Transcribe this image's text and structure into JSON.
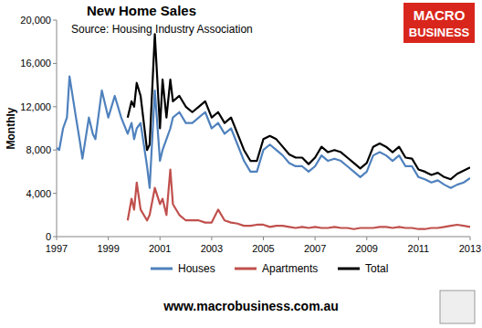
{
  "chart_data": {
    "type": "line",
    "title": "New Home Sales",
    "subtitle": "Source: Housing Industry Association",
    "y_label": "Monthly",
    "annotations": [
      "MACRO",
      "BUSINESS",
      "www.macrobusiness.com.au"
    ],
    "x": [
      1997,
      1997.1,
      1997.25,
      1997.4,
      1997.5,
      1997.75,
      1997.9,
      1998,
      1998.25,
      1998.4,
      1998.5,
      1998.75,
      1999,
      1999.25,
      1999.5,
      1999.75,
      1999.9,
      2000,
      2000.1,
      2000.25,
      2000.5,
      2000.6,
      2000.8,
      2001,
      2001.1,
      2001.25,
      2001.4,
      2001.5,
      2001.75,
      2002,
      2002.25,
      2002.5,
      2002.75,
      2003,
      2003.25,
      2003.5,
      2003.75,
      2004,
      2004.25,
      2004.5,
      2004.75,
      2005,
      2005.25,
      2005.5,
      2005.75,
      2006,
      2006.25,
      2006.5,
      2006.75,
      2007,
      2007.25,
      2007.5,
      2007.75,
      2008,
      2008.25,
      2008.5,
      2008.75,
      2009,
      2009.25,
      2009.5,
      2009.75,
      2010,
      2010.25,
      2010.5,
      2010.75,
      2011,
      2011.25,
      2011.5,
      2011.75,
      2012,
      2012.25,
      2012.5,
      2012.75,
      2013
    ],
    "series": [
      {
        "name": "Houses",
        "color": "#4f81bd",
        "values": [
          8200,
          8000,
          10000,
          11000,
          14800,
          11000,
          8800,
          7200,
          11000,
          9500,
          9000,
          13500,
          11000,
          13000,
          11000,
          9500,
          10500,
          9000,
          10000,
          10500,
          6500,
          4500,
          13500,
          7000,
          8000,
          9000,
          10000,
          11000,
          11500,
          10500,
          10500,
          11000,
          11500,
          10000,
          10500,
          9500,
          10000,
          8500,
          7000,
          6000,
          6000,
          8000,
          8500,
          8000,
          7500,
          6800,
          6500,
          6500,
          6000,
          6500,
          7500,
          7000,
          7200,
          7000,
          6500,
          6000,
          5500,
          6000,
          7500,
          7800,
          7500,
          7000,
          7500,
          6500,
          6500,
          5500,
          5300,
          5000,
          5200,
          4800,
          4500,
          4800,
          5000,
          5400
        ]
      },
      {
        "name": "Apartments",
        "color": "#c0504d",
        "values": [
          null,
          null,
          null,
          null,
          null,
          null,
          null,
          null,
          null,
          null,
          null,
          null,
          null,
          null,
          null,
          1500,
          3500,
          2500,
          5000,
          2500,
          1500,
          2000,
          4500,
          3000,
          3500,
          2000,
          6200,
          3000,
          2000,
          1500,
          1500,
          1500,
          1300,
          1300,
          2500,
          1500,
          1300,
          1200,
          1000,
          1000,
          1100,
          1100,
          900,
          1000,
          1000,
          900,
          800,
          900,
          800,
          900,
          800,
          800,
          900,
          800,
          800,
          700,
          800,
          800,
          800,
          900,
          900,
          800,
          900,
          800,
          800,
          700,
          700,
          800,
          800,
          900,
          1000,
          1100,
          1000,
          900
        ]
      },
      {
        "name": "Total",
        "color": "#000000",
        "values": [
          null,
          null,
          null,
          null,
          null,
          null,
          null,
          null,
          null,
          null,
          null,
          null,
          null,
          null,
          null,
          11000,
          12500,
          12000,
          14200,
          13000,
          8000,
          8500,
          18700,
          10000,
          14500,
          11000,
          14500,
          12500,
          13000,
          12000,
          11500,
          12000,
          12500,
          11000,
          11500,
          10500,
          11000,
          9500,
          8000,
          7000,
          7000,
          9000,
          9300,
          9000,
          8300,
          7600,
          7300,
          7300,
          6700,
          7300,
          8300,
          7800,
          8000,
          7800,
          7300,
          6800,
          6300,
          6800,
          8300,
          8600,
          8300,
          7800,
          8300,
          7300,
          7200,
          6200,
          6000,
          5700,
          5900,
          5500,
          5300,
          5800,
          6100,
          6400
        ]
      }
    ],
    "xlim": [
      1997,
      2013
    ],
    "xticks": [
      1997,
      1999,
      2001,
      2003,
      2005,
      2007,
      2009,
      2011,
      2013
    ],
    "ylim": [
      0,
      20000
    ],
    "yticks": [
      0,
      {
        "value": 4000,
        "label": "4,000"
      },
      {
        "value": 8000,
        "label": "8,000"
      },
      {
        "value": 12000,
        "label": "12,000"
      },
      {
        "value": 16000,
        "label": "16,000"
      },
      {
        "value": 20000,
        "label": "20,000"
      }
    ],
    "grid": false,
    "legend": "bottom"
  }
}
